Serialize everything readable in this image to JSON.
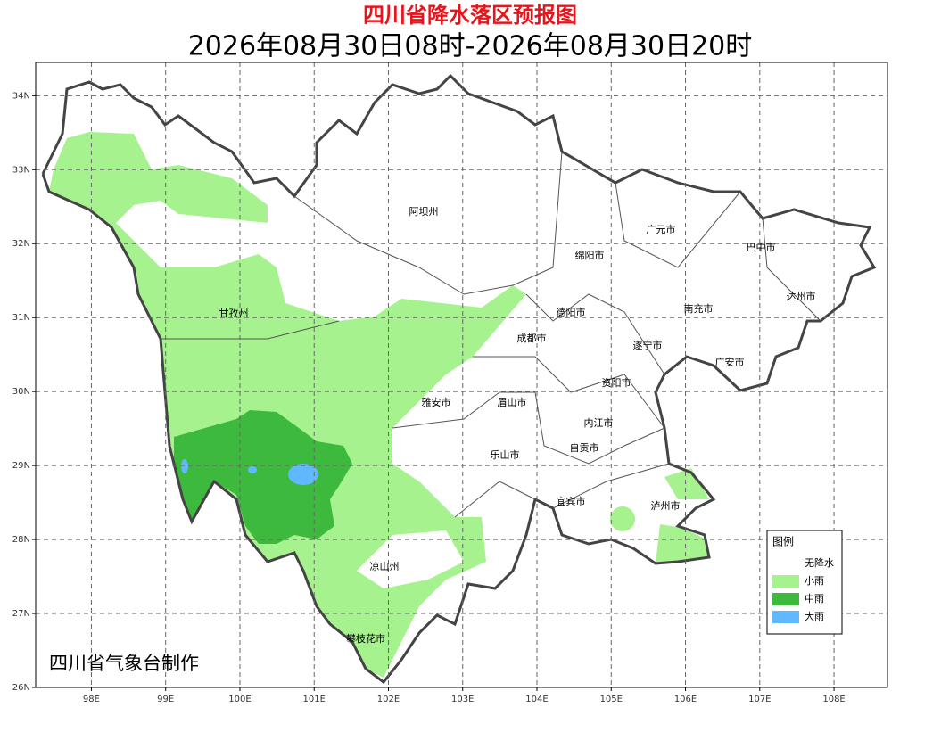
{
  "header": {
    "title": "四川省降水落区预报图",
    "subtitle": "2026年08月30日08时-2026年08月30日20时"
  },
  "map": {
    "xlim": [
      97.25,
      108.72
    ],
    "ylim": [
      26,
      34.45
    ],
    "lon_ticks": [
      {
        "value": 98,
        "label": "98E"
      },
      {
        "value": 99,
        "label": "99E"
      },
      {
        "value": 100,
        "label": "100E"
      },
      {
        "value": 101,
        "label": "101E"
      },
      {
        "value": 102,
        "label": "102E"
      },
      {
        "value": 103,
        "label": "103E"
      },
      {
        "value": 104,
        "label": "104E"
      },
      {
        "value": 105,
        "label": "105E"
      },
      {
        "value": 106,
        "label": "106E"
      },
      {
        "value": 107,
        "label": "107E"
      },
      {
        "value": 108,
        "label": "108E"
      }
    ],
    "lat_ticks": [
      {
        "value": 26,
        "label": "26N"
      },
      {
        "value": 27,
        "label": "27N"
      },
      {
        "value": 28,
        "label": "28N"
      },
      {
        "value": 29,
        "label": "29N"
      },
      {
        "value": 30,
        "label": "30N"
      },
      {
        "value": 31,
        "label": "31N"
      },
      {
        "value": 32,
        "label": "32N"
      },
      {
        "value": 33,
        "label": "33N"
      },
      {
        "value": 34,
        "label": "34N"
      }
    ]
  },
  "places": [
    "阿坝州",
    "绵阳市",
    "广元市",
    "巴中市",
    "达州市",
    "甘孜州",
    "德阳市",
    "南充市",
    "成都市",
    "遂宁市",
    "广安市",
    "资阳市",
    "雅安市",
    "眉山市",
    "内江市",
    "自贡市",
    "乐山市",
    "宜宾市",
    "泸州市",
    "凉山州",
    "攀枝花市"
  ],
  "legend": {
    "title": "图例",
    "items": [
      {
        "label": "无降水",
        "color": "#ffffff"
      },
      {
        "label": "小雨",
        "color": "#a6f28f"
      },
      {
        "label": "中雨",
        "color": "#3dba3d"
      },
      {
        "label": "大雨",
        "color": "#61b8ff"
      }
    ]
  },
  "credit": "四川省气象台制作"
}
